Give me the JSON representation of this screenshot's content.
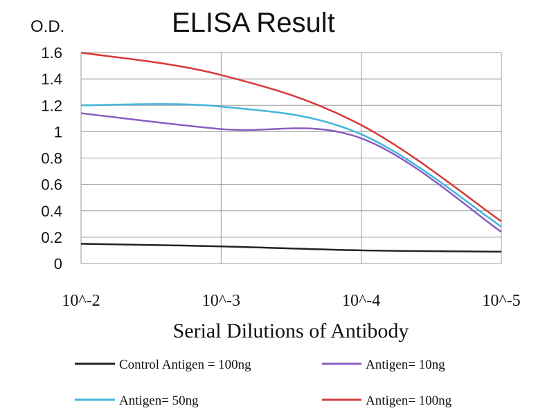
{
  "chart_data": {
    "type": "line",
    "title": "ELISA Result",
    "ylabel": "O.D.",
    "xlabel": "Serial Dilutions of Antibody",
    "x_tick_labels": [
      "10^-2",
      "10^-3",
      "10^-4",
      "10^-5"
    ],
    "x": [
      0.01,
      0.001,
      0.0001,
      1e-05
    ],
    "ylim": [
      0,
      1.6
    ],
    "y_ticks": [
      0,
      0.2,
      0.4,
      0.6,
      0.8,
      1,
      1.2,
      1.4,
      1.6
    ],
    "y_tick_labels": [
      "0",
      "0.2",
      "0.4",
      "0.6",
      "0.8",
      "1",
      "1.2",
      "1.4",
      "1.6"
    ],
    "grid": true,
    "legend_position": "bottom",
    "series": [
      {
        "name": "Control Antigen = 100ng",
        "color": "#222222",
        "values": [
          0.15,
          0.13,
          0.1,
          0.09
        ]
      },
      {
        "name": "Antigen= 10ng",
        "color": "#8a5cc0",
        "values": [
          1.14,
          1.02,
          0.95,
          0.24
        ]
      },
      {
        "name": "Antigen= 50ng",
        "color": "#3fb6dc",
        "values": [
          1.2,
          1.19,
          0.98,
          0.28
        ]
      },
      {
        "name": "Antigen= 100ng",
        "color": "#d83a3a",
        "values": [
          1.6,
          1.43,
          1.05,
          0.32
        ]
      }
    ]
  }
}
